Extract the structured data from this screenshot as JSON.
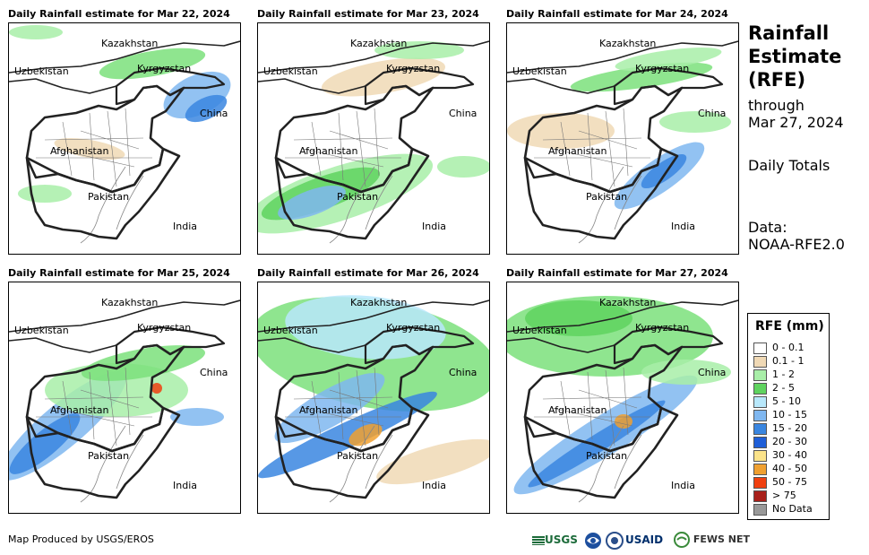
{
  "panels": [
    {
      "title": "Daily Rainfall estimate for Mar 22, 2024",
      "rain": [
        {
          "cx": 210,
          "cy": 80,
          "rx": 40,
          "ry": 22,
          "r": -25,
          "c": "#7fb7f0"
        },
        {
          "cx": 220,
          "cy": 95,
          "rx": 25,
          "ry": 12,
          "r": -25,
          "c": "#3a86e0"
        },
        {
          "cx": 160,
          "cy": 45,
          "rx": 60,
          "ry": 14,
          "r": -10,
          "c": "#7be07b"
        },
        {
          "cx": 30,
          "cy": 10,
          "rx": 30,
          "ry": 8,
          "r": 0,
          "c": "#a8eea8"
        },
        {
          "cx": 90,
          "cy": 140,
          "rx": 40,
          "ry": 10,
          "r": 10,
          "c": "#f0d9b5"
        },
        {
          "cx": 40,
          "cy": 190,
          "rx": 30,
          "ry": 10,
          "r": 0,
          "c": "#a8eea8"
        }
      ]
    },
    {
      "title": "Daily Rainfall estimate for Mar 23, 2024",
      "rain": [
        {
          "cx": 90,
          "cy": 190,
          "rx": 110,
          "ry": 30,
          "r": -18,
          "c": "#a8eea8"
        },
        {
          "cx": 70,
          "cy": 190,
          "rx": 70,
          "ry": 18,
          "r": -20,
          "c": "#5fd35f"
        },
        {
          "cx": 60,
          "cy": 200,
          "rx": 40,
          "ry": 14,
          "r": -20,
          "c": "#7fb7f0"
        },
        {
          "cx": 140,
          "cy": 60,
          "rx": 70,
          "ry": 18,
          "r": -10,
          "c": "#f0d9b5"
        },
        {
          "cx": 180,
          "cy": 30,
          "rx": 50,
          "ry": 10,
          "r": 0,
          "c": "#a8eea8"
        },
        {
          "cx": 230,
          "cy": 160,
          "rx": 30,
          "ry": 12,
          "r": 0,
          "c": "#a8eea8"
        }
      ]
    },
    {
      "title": "Daily Rainfall estimate for Mar 24, 2024",
      "rain": [
        {
          "cx": 170,
          "cy": 170,
          "rx": 60,
          "ry": 18,
          "r": -35,
          "c": "#7fb7f0"
        },
        {
          "cx": 175,
          "cy": 165,
          "rx": 30,
          "ry": 10,
          "r": -35,
          "c": "#3a86e0"
        },
        {
          "cx": 150,
          "cy": 60,
          "rx": 80,
          "ry": 12,
          "r": -8,
          "c": "#7be07b"
        },
        {
          "cx": 180,
          "cy": 40,
          "rx": 60,
          "ry": 10,
          "r": -8,
          "c": "#a8eea8"
        },
        {
          "cx": 60,
          "cy": 120,
          "rx": 60,
          "ry": 20,
          "r": 0,
          "c": "#f0d9b5"
        },
        {
          "cx": 210,
          "cy": 110,
          "rx": 40,
          "ry": 12,
          "r": 0,
          "c": "#a8eea8"
        }
      ]
    },
    {
      "title": "Daily Rainfall estimate for Mar 25, 2024",
      "rain": [
        {
          "cx": 60,
          "cy": 160,
          "rx": 90,
          "ry": 24,
          "r": -40,
          "c": "#7fb7f0"
        },
        {
          "cx": 40,
          "cy": 180,
          "rx": 50,
          "ry": 14,
          "r": -40,
          "c": "#3a86e0"
        },
        {
          "cx": 120,
          "cy": 120,
          "rx": 80,
          "ry": 30,
          "r": 0,
          "c": "#a8eea8"
        },
        {
          "cx": 150,
          "cy": 90,
          "rx": 70,
          "ry": 16,
          "r": -10,
          "c": "#7be07b"
        },
        {
          "cx": 165,
          "cy": 118,
          "rx": 6,
          "ry": 6,
          "r": 0,
          "c": "#f04010"
        },
        {
          "cx": 210,
          "cy": 150,
          "rx": 30,
          "ry": 10,
          "r": 0,
          "c": "#7fb7f0"
        }
      ]
    },
    {
      "title": "Daily Rainfall estimate for Mar 26, 2024",
      "rain": [
        {
          "cx": 130,
          "cy": 80,
          "rx": 140,
          "ry": 60,
          "r": 10,
          "c": "#7be07b"
        },
        {
          "cx": 120,
          "cy": 50,
          "rx": 90,
          "ry": 35,
          "r": 5,
          "c": "#b8e8fb"
        },
        {
          "cx": 80,
          "cy": 140,
          "rx": 70,
          "ry": 20,
          "r": -30,
          "c": "#7fb7f0"
        },
        {
          "cx": 100,
          "cy": 170,
          "rx": 110,
          "ry": 14,
          "r": -25,
          "c": "#3a86e0"
        },
        {
          "cx": 120,
          "cy": 170,
          "rx": 20,
          "ry": 10,
          "r": -25,
          "c": "#f0a030"
        },
        {
          "cx": 200,
          "cy": 200,
          "rx": 70,
          "ry": 18,
          "r": -15,
          "c": "#f0d9b5"
        }
      ]
    },
    {
      "title": "Daily Rainfall estimate for Mar 27, 2024",
      "rain": [
        {
          "cx": 110,
          "cy": 60,
          "rx": 120,
          "ry": 45,
          "r": 0,
          "c": "#7be07b"
        },
        {
          "cx": 80,
          "cy": 40,
          "rx": 60,
          "ry": 20,
          "r": 0,
          "c": "#5fd35f"
        },
        {
          "cx": 110,
          "cy": 170,
          "rx": 120,
          "ry": 22,
          "r": -32,
          "c": "#7fb7f0"
        },
        {
          "cx": 100,
          "cy": 180,
          "rx": 90,
          "ry": 10,
          "r": -32,
          "c": "#3a86e0"
        },
        {
          "cx": 130,
          "cy": 155,
          "rx": 10,
          "ry": 8,
          "r": 0,
          "c": "#f0a030"
        },
        {
          "cx": 200,
          "cy": 100,
          "rx": 50,
          "ry": 14,
          "r": 0,
          "c": "#a8eea8"
        }
      ]
    }
  ],
  "map_labels": {
    "kazakhstan": "Kazakhstan",
    "uzbekistan": "Uzbekistan",
    "kyrgyzstan": "Kyrgyzstan",
    "china": "China",
    "afghanistan": "Afghanistan",
    "pakistan": "Pakistan",
    "india": "India"
  },
  "sidebar": {
    "title_line1": "Rainfall",
    "title_line2": "Estimate",
    "title_line3": "(RFE)",
    "through_label": "through",
    "through_date": "Mar 27, 2024",
    "totals": "Daily Totals",
    "data_label": "Data:",
    "data_source": "NOAA-RFE2.0"
  },
  "legend": {
    "title": "RFE (mm)",
    "items": [
      {
        "label": "0 - 0.1",
        "color": "#ffffff"
      },
      {
        "label": "0.1 - 1",
        "color": "#f0d9b5"
      },
      {
        "label": "1 - 2",
        "color": "#a8eea8"
      },
      {
        "label": "2 - 5",
        "color": "#5fd35f"
      },
      {
        "label": "5 - 10",
        "color": "#b8e8fb"
      },
      {
        "label": "10 - 15",
        "color": "#7fb7f0"
      },
      {
        "label": "15 - 20",
        "color": "#3a86e0"
      },
      {
        "label": "20 - 30",
        "color": "#1f5fd8"
      },
      {
        "label": "30 - 40",
        "color": "#fbe38a"
      },
      {
        "label": "40 - 50",
        "color": "#f0a030"
      },
      {
        "label": "50 - 75",
        "color": "#f04010"
      },
      {
        "label": "> 75",
        "color": "#a8201a"
      },
      {
        "label": "No Data",
        "color": "#999999"
      }
    ]
  },
  "credit": "Map Produced by USGS/EROS",
  "logos": {
    "usgs": "USGS",
    "usaid": "USAID",
    "fewsnet": "FEWS NET"
  }
}
